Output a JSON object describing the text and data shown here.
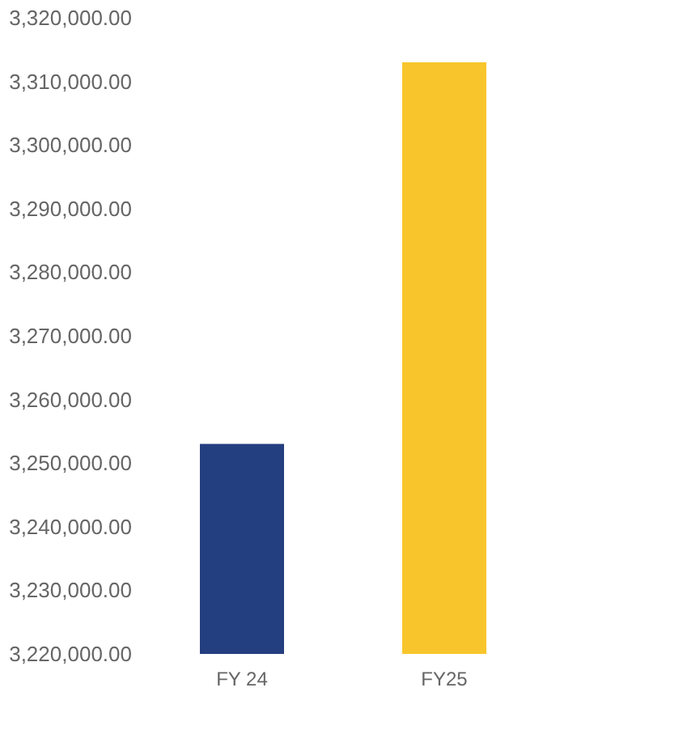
{
  "chart_data": {
    "type": "bar",
    "categories": [
      "FY 24",
      "FY25"
    ],
    "values": [
      3253000,
      3313000
    ],
    "colors": [
      "#243f80",
      "#f8c62c"
    ],
    "ylim": [
      3220000,
      3320000
    ],
    "yticks": [
      {
        "value": 3220000,
        "label": "3,220,000.00"
      },
      {
        "value": 3230000,
        "label": "3,230,000.00"
      },
      {
        "value": 3240000,
        "label": "3,240,000.00"
      },
      {
        "value": 3250000,
        "label": "3,250,000.00"
      },
      {
        "value": 3260000,
        "label": "3,260,000.00"
      },
      {
        "value": 3270000,
        "label": "3,270,000.00"
      },
      {
        "value": 3280000,
        "label": "3,280,000.00"
      },
      {
        "value": 3290000,
        "label": "3,290,000.00"
      },
      {
        "value": 3300000,
        "label": "3,300,000.00"
      },
      {
        "value": 3310000,
        "label": "3,310,000.00"
      },
      {
        "value": 3320000,
        "label": "3,320,000.00"
      }
    ],
    "grid": false
  }
}
